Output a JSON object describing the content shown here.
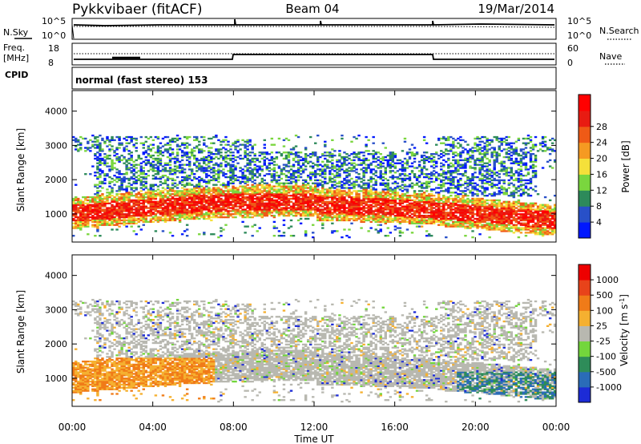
{
  "header": {
    "station": "Pykkvibaer (fitACF)",
    "beam": "Beam 04",
    "date": "19/Mar/2014"
  },
  "aux_panels": {
    "nsky_label": "N.Sky",
    "nsky_ticks": [
      "10^5",
      "10^0"
    ],
    "nsearch_label": "N.Search",
    "nsearch_ticks": [
      "10^5",
      "10^0"
    ],
    "freq_label": "Freq.",
    "freq_unit": "[MHz]",
    "freq_ticks": [
      "18",
      "8"
    ],
    "nave_label": "Nave",
    "nave_ticks": [
      "60",
      "0"
    ],
    "cpid_label": "CPID",
    "cpid_text": "normal (fast stereo) 153"
  },
  "colors": {
    "power_scale": [
      "#0018ff",
      "#2850c8",
      "#2d8a5a",
      "#7ad63e",
      "#f5e03a",
      "#f59a22",
      "#ef5a16",
      "#e81b12",
      "#ff0000"
    ],
    "velocity_scale": [
      "#1c2bd6",
      "#2a6cb8",
      "#2e8c59",
      "#73d63c",
      "#b8b8b0",
      "#f5b030",
      "#f07b18",
      "#e8431a",
      "#ee0000"
    ]
  },
  "chart_data": [
    {
      "type": "heatmap",
      "name": "power",
      "ylabel": "Slant Range [km]",
      "yticks": [
        1000,
        2000,
        3000,
        4000
      ],
      "ylim": [
        180,
        4600
      ],
      "colorbar_label": "Power [dB]",
      "colorbar_ticks": [
        "4",
        "8",
        "12",
        "16",
        "20",
        "24",
        "28"
      ],
      "colorbar_range": [
        0,
        30
      ]
    },
    {
      "type": "heatmap",
      "name": "velocity",
      "ylabel": "Slant Range [km]",
      "yticks": [
        1000,
        2000,
        3000,
        4000
      ],
      "ylim": [
        180,
        4600
      ],
      "colorbar_label": "Velocity [m s^-1]",
      "colorbar_ticks": [
        "1000",
        "500",
        "100",
        "25",
        "-25",
        "-100",
        "-500",
        "-1000"
      ]
    }
  ],
  "xaxis": {
    "label": "Time UT",
    "ticks": [
      "00:00",
      "04:00",
      "08:00",
      "12:00",
      "16:00",
      "20:00",
      "00:00"
    ],
    "range_hours": [
      0,
      24
    ]
  }
}
